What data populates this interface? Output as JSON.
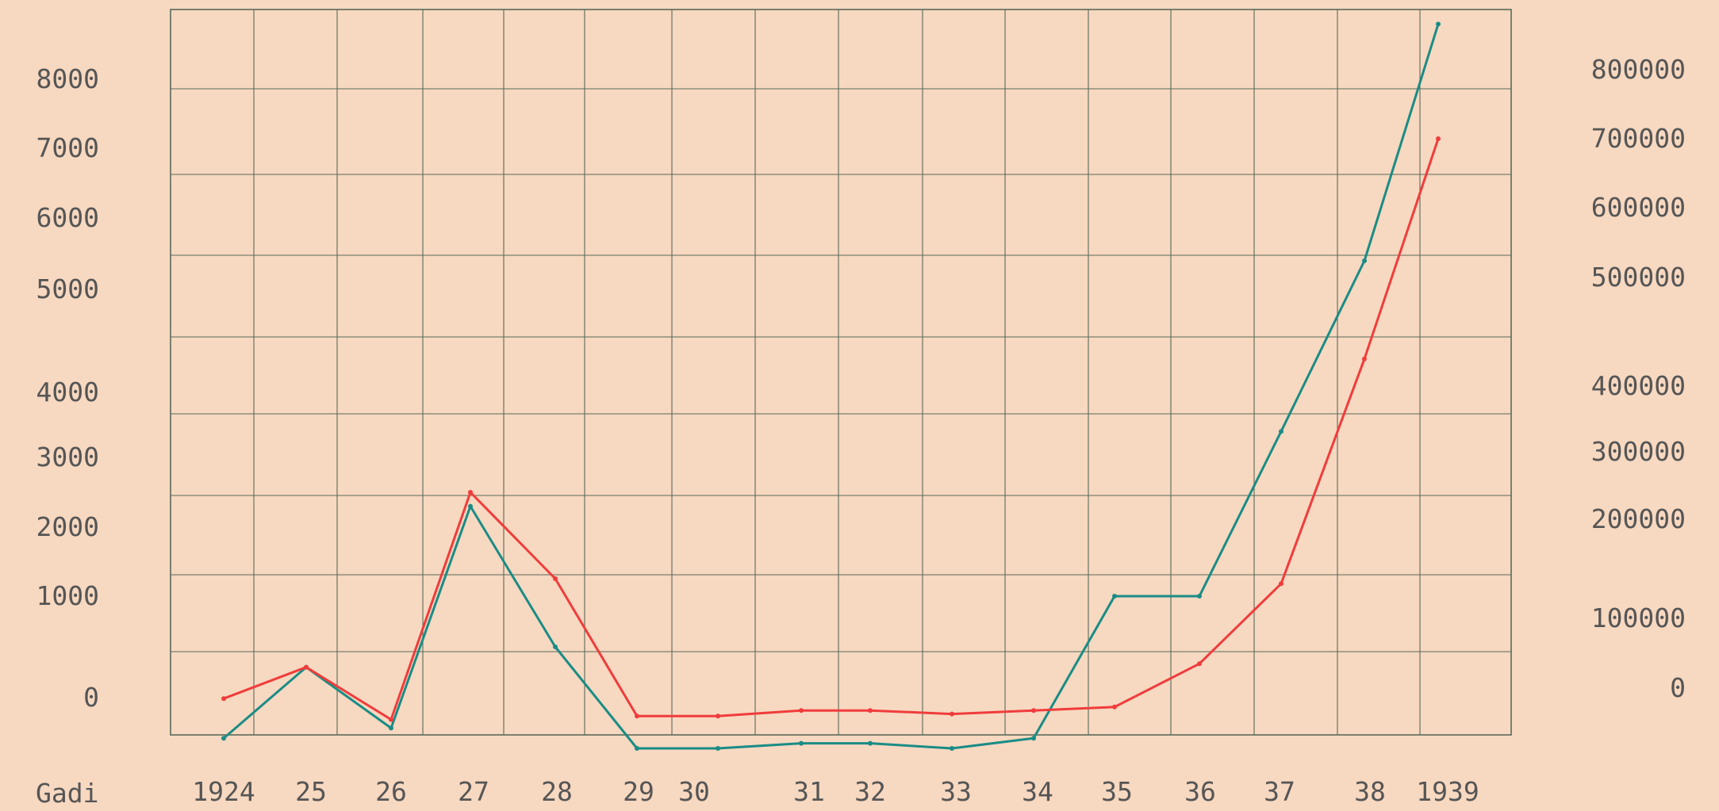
{
  "chart_data": {
    "type": "line",
    "xlabel": "Gadi",
    "x": [
      1924,
      1925,
      1926,
      1927,
      1928,
      1929,
      1930,
      1931,
      1932,
      1933,
      1934,
      1935,
      1936,
      1937,
      1938,
      1939
    ],
    "x_tick_labels": [
      "1924",
      "25",
      "26",
      "27",
      "28",
      "29",
      "30",
      "31",
      "32",
      "33",
      "34",
      "35",
      "36",
      "37",
      "38",
      "1939"
    ],
    "y_left": {
      "ticks": [
        "0",
        "1000",
        "2000",
        "3000",
        "4000",
        "5000",
        "6000",
        "7000",
        "8000"
      ],
      "ylim": [
        -500,
        8000
      ]
    },
    "y_right": {
      "ticks": [
        "0",
        "100000",
        "200000",
        "300000",
        "400000",
        "500000",
        "600000",
        "700000",
        "800000"
      ],
      "ylim": [
        -50000,
        800000
      ]
    },
    "grid": true,
    "series": [
      {
        "axis": "left",
        "color": "#1a8c86",
        "values": [
          -400,
          300,
          -300,
          2300,
          500,
          -500,
          -500,
          -450,
          -450,
          -500,
          -400,
          1000,
          1000,
          3400,
          5400,
          8800
        ]
      },
      {
        "axis": "right",
        "color": "#f03c3c",
        "values": [
          -15000,
          30000,
          -45000,
          240000,
          140000,
          -40000,
          -40000,
          -32000,
          -32000,
          -37000,
          -32000,
          -27000,
          35000,
          135000,
          425000,
          700000
        ]
      }
    ]
  }
}
